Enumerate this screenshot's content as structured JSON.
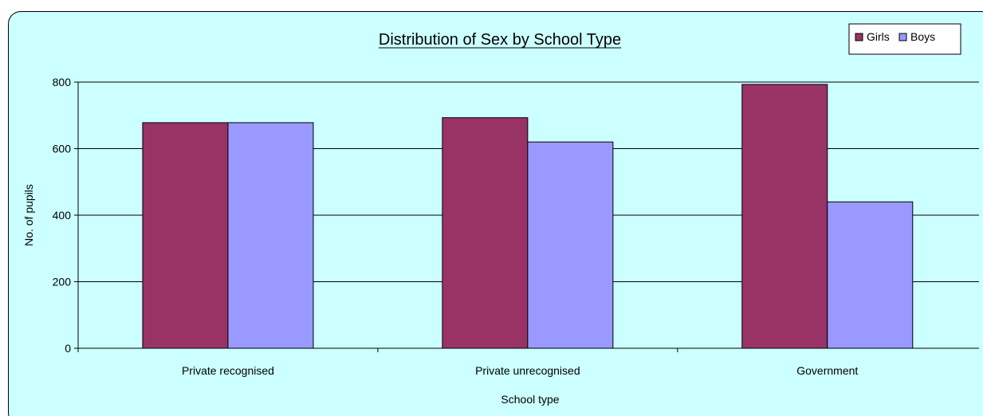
{
  "chart_data": {
    "type": "bar",
    "title": "Distribution of Sex by School Type",
    "xlabel": "School type",
    "ylabel": "No. of pupils",
    "categories": [
      "Private recognised",
      "Private unrecognised",
      "Government"
    ],
    "series": [
      {
        "name": "Girls",
        "values": [
          678,
          693,
          793
        ],
        "color": "#993366"
      },
      {
        "name": "Boys",
        "values": [
          678,
          620,
          440
        ],
        "color": "#9999ff"
      }
    ],
    "ylim": [
      0,
      800
    ],
    "yticks": [
      0,
      200,
      400,
      600,
      800
    ],
    "grid": true,
    "legend": "top-right",
    "background_color": "#ccffff"
  }
}
